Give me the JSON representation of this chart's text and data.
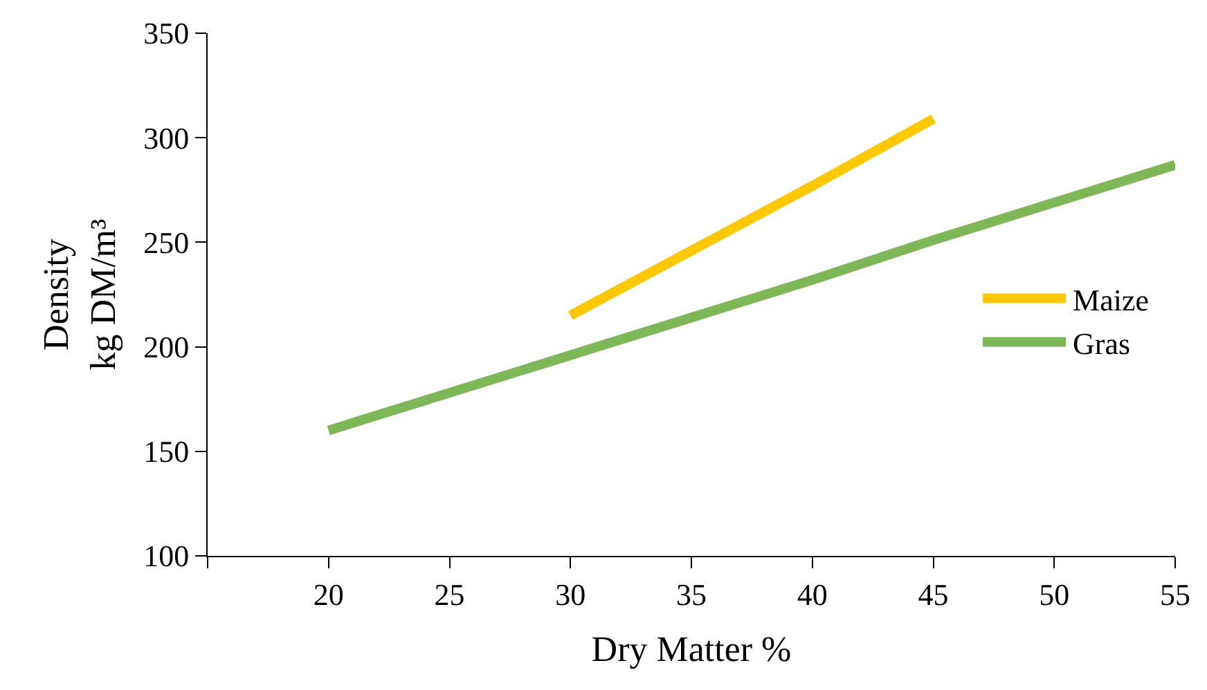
{
  "chart_data": {
    "type": "line",
    "xlabel": "Dry Matter %",
    "ylabel": "Density\nkg DM/m³",
    "series": [
      {
        "name": "Maize",
        "color": "#ffc800",
        "x": [
          30,
          35,
          40,
          45
        ],
        "values": [
          215,
          246,
          277,
          309
        ]
      },
      {
        "name": "Gras",
        "color": "#7eb658",
        "x": [
          20,
          25,
          30,
          35,
          40,
          45,
          50,
          55
        ],
        "values": [
          160,
          178,
          196,
          214,
          232,
          251,
          269,
          287
        ]
      }
    ],
    "xlim": [
      15,
      55
    ],
    "xticks": [
      {
        "value": 15,
        "label": null
      },
      20,
      25,
      30,
      35,
      40,
      45,
      50,
      55
    ],
    "ylim": [
      100,
      350
    ],
    "yticks": [
      100,
      150,
      200,
      250,
      300,
      350
    ],
    "legend": "right",
    "marker": "none",
    "line_style": "solid"
  }
}
